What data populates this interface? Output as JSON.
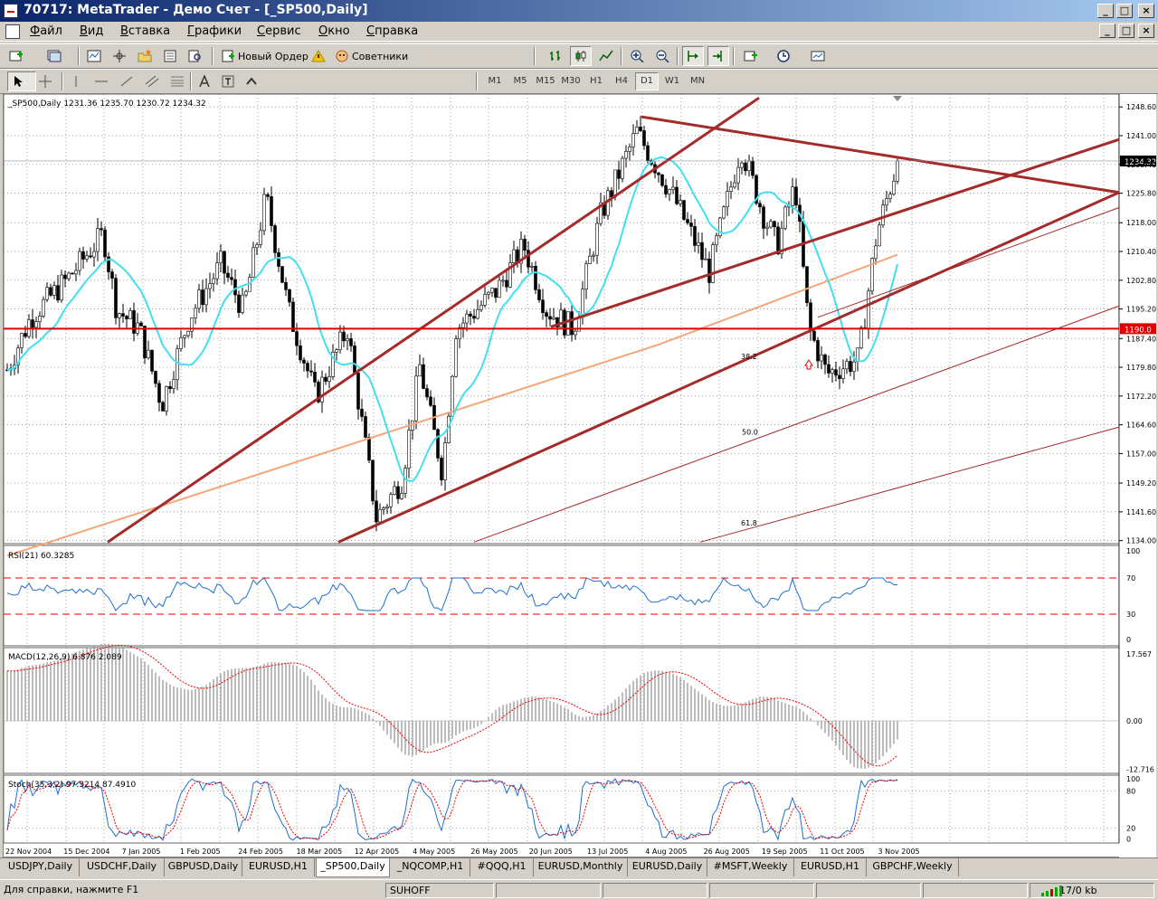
{
  "window": {
    "title": "70717: MetaTrader - Демо Счет - [_SP500,Daily]",
    "min_label": "_",
    "max_label": "□",
    "close_label": "×"
  },
  "menu": [
    "Файл",
    "Вид",
    "Вставка",
    "Графики",
    "Сервис",
    "Окно",
    "Справка"
  ],
  "toolbar": {
    "new_order_label": "Новый Ордер",
    "experts_label": "Советники",
    "timeframes": [
      "M1",
      "M5",
      "M15",
      "M30",
      "H1",
      "H4",
      "D1",
      "W1",
      "MN"
    ],
    "active_timeframe": "D1"
  },
  "chart": {
    "header": "_SP500,Daily  1231.36 1235.70 1230.72 1234.32",
    "price_labels": [
      "1248.60",
      "1241.00",
      "1233.40",
      "1225.80",
      "1218.00",
      "1210.40",
      "1202.80",
      "1195.20",
      "1187.40",
      "1179.80",
      "1172.20",
      "1164.60",
      "1157.00",
      "1149.20",
      "1141.60",
      "1134.00"
    ],
    "price_label_values": [
      1248.6,
      1241.0,
      1233.4,
      1225.8,
      1218.0,
      1210.4,
      1202.8,
      1195.2,
      1187.4,
      1179.8,
      1172.2,
      1164.6,
      1157.0,
      1149.2,
      1141.6,
      1134.0
    ],
    "current_price_label": "1234.32",
    "current_price": 1234.32,
    "hline_label": "1190.0",
    "hline_price": 1190.0,
    "fib_labels": [
      "38.2",
      "50.0",
      "61.8"
    ],
    "date_labels": [
      "22 Nov 2004",
      "15 Dec 2004",
      "7 Jan 2005",
      "1 Feb 2005",
      "24 Feb 2005",
      "18 Mar 2005",
      "12 Apr 2005",
      "4 May 2005",
      "26 May 2005",
      "20 Jun 2005",
      "13 Jul 2005",
      "4 Aug 2005",
      "26 Aug 2005",
      "19 Sep 2005",
      "11 Oct 2005",
      "3 Nov 2005"
    ],
    "price_axis": [
      1134.0,
      1250.0
    ],
    "colors": {
      "bull": "#006400",
      "bear": "#8b0000",
      "ma_fast": "#40e0f0",
      "ma_slow": "#f4a67a",
      "trend": "#a52a2a",
      "hline": "#e00000"
    }
  },
  "rsi": {
    "header": "RSI(21) 60.3285",
    "labels": [
      "100",
      "70",
      "30",
      "0"
    ],
    "levels": [
      70,
      30
    ]
  },
  "macd": {
    "header": "MACD(12,26,9) 6.876 2.089",
    "labels": [
      "17.567",
      "0.00",
      "-12.716"
    ]
  },
  "stoch": {
    "header": "Stoch(35,3,2) 97.3214 87.4910",
    "labels": [
      "100",
      "80",
      "20",
      "0"
    ]
  },
  "tabs": [
    "USDJPY,Daily",
    "USDCHF,Daily",
    "GBPUSD,Daily",
    "EURUSD,H1",
    "_SP500,Daily",
    "_NQCOMP,H1",
    "#QQQ,H1",
    "EURUSD,Monthly",
    "EURUSD,Daily",
    "#MSFT,Weekly",
    "EURUSD,H1",
    "GBPCHF,Weekly"
  ],
  "active_tab": "_SP500,Daily",
  "status": {
    "help": "Для справки, нажмите F1",
    "profile": "SUHOFF",
    "traffic": "17/0 kb"
  }
}
